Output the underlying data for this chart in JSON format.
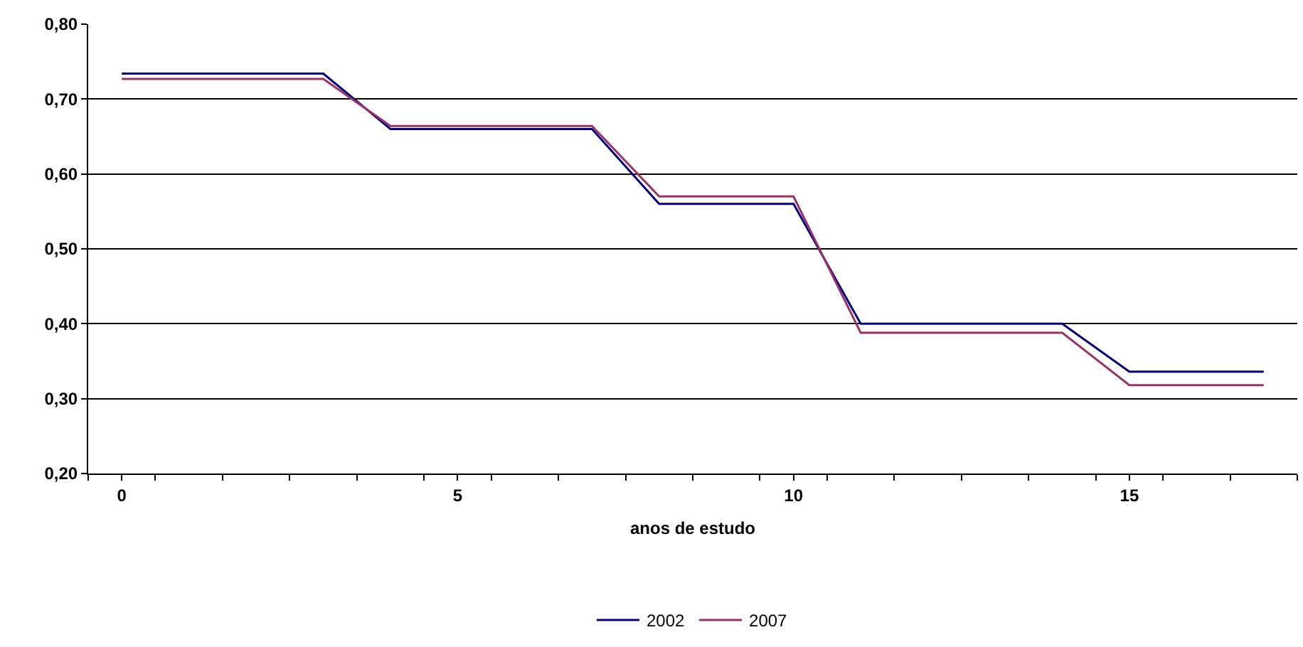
{
  "chart_data": {
    "type": "line",
    "xlabel": "anos de estudo",
    "x": [
      0,
      1,
      2,
      3,
      4,
      5,
      6,
      7,
      8,
      9,
      10,
      11,
      12,
      13,
      14,
      15,
      16,
      17
    ],
    "series": [
      {
        "name": "2002",
        "color": "#000080",
        "values": [
          0.734,
          0.734,
          0.734,
          0.734,
          0.66,
          0.66,
          0.66,
          0.66,
          0.56,
          0.56,
          0.56,
          0.4,
          0.4,
          0.4,
          0.4,
          0.336,
          0.336,
          0.336
        ]
      },
      {
        "name": "2007",
        "color": "#993366",
        "values": [
          0.727,
          0.727,
          0.727,
          0.727,
          0.664,
          0.664,
          0.664,
          0.664,
          0.57,
          0.57,
          0.57,
          0.388,
          0.388,
          0.388,
          0.388,
          0.318,
          0.318,
          0.318
        ]
      }
    ],
    "xlim": [
      -0.5,
      17.5
    ],
    "xticks": [
      {
        "value": 0,
        "label": "0"
      },
      {
        "value": 5,
        "label": "5"
      },
      {
        "value": 10,
        "label": "10"
      },
      {
        "value": 15,
        "label": "15"
      },
      {
        "value": -0.5,
        "label": null
      },
      {
        "value": 0.5,
        "label": null
      },
      {
        "value": 1.5,
        "label": null
      },
      {
        "value": 2.5,
        "label": null
      },
      {
        "value": 3.5,
        "label": null
      },
      {
        "value": 4.5,
        "label": null
      },
      {
        "value": 5.5,
        "label": null
      },
      {
        "value": 6.5,
        "label": null
      },
      {
        "value": 7.5,
        "label": null
      },
      {
        "value": 8.5,
        "label": null
      },
      {
        "value": 9.5,
        "label": null
      },
      {
        "value": 10.5,
        "label": null
      },
      {
        "value": 11.5,
        "label": null
      },
      {
        "value": 12.5,
        "label": null
      },
      {
        "value": 13.5,
        "label": null
      },
      {
        "value": 14.5,
        "label": null
      },
      {
        "value": 15.5,
        "label": null
      },
      {
        "value": 16.5,
        "label": null
      },
      {
        "value": 17.5,
        "label": null
      }
    ],
    "ylim": [
      0.2,
      0.8
    ],
    "yticks": [
      {
        "value": 0.2,
        "label": "0,20"
      },
      {
        "value": 0.3,
        "label": "0,30"
      },
      {
        "value": 0.4,
        "label": "0,40"
      },
      {
        "value": 0.5,
        "label": "0,50"
      },
      {
        "value": 0.6,
        "label": "0,60"
      },
      {
        "value": 0.7,
        "label": "0,70"
      },
      {
        "value": 0.8,
        "label": "0,80"
      }
    ],
    "grid": "y",
    "legend": "bottom",
    "marker": "none",
    "line_style": "solid"
  }
}
